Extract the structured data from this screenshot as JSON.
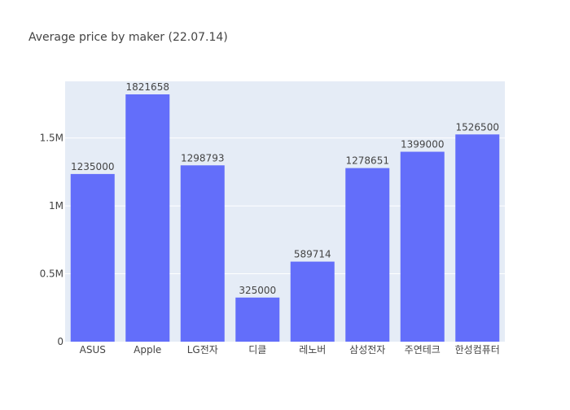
{
  "chart_data": {
    "type": "bar",
    "title": "Average price by maker (22.07.14)",
    "xlabel": "",
    "ylabel": "",
    "categories": [
      "ASUS",
      "Apple",
      "LG전자",
      "디클",
      "레노버",
      "삼성전자",
      "주연테크",
      "한성컴퓨터"
    ],
    "values": [
      1235000,
      1821658,
      1298793,
      325000,
      589714,
      1278651,
      1399000,
      1526500
    ],
    "data_labels": [
      "1235000",
      "1821658",
      "1298793",
      "325000",
      "589714",
      "1278651",
      "1399000",
      "1526500"
    ],
    "ylim": [
      0,
      1917535
    ],
    "yticks": [
      0,
      500000,
      1000000,
      1500000
    ],
    "ytick_labels": [
      "0",
      "0.5M",
      "1M",
      "1.5M"
    ],
    "grid": true,
    "legend": "none",
    "colors": {
      "bar": "#636efa",
      "plot_bg": "#e5ecf6",
      "grid": "#ffffff",
      "text": "#444444",
      "page_bg": "#ffffff"
    }
  }
}
